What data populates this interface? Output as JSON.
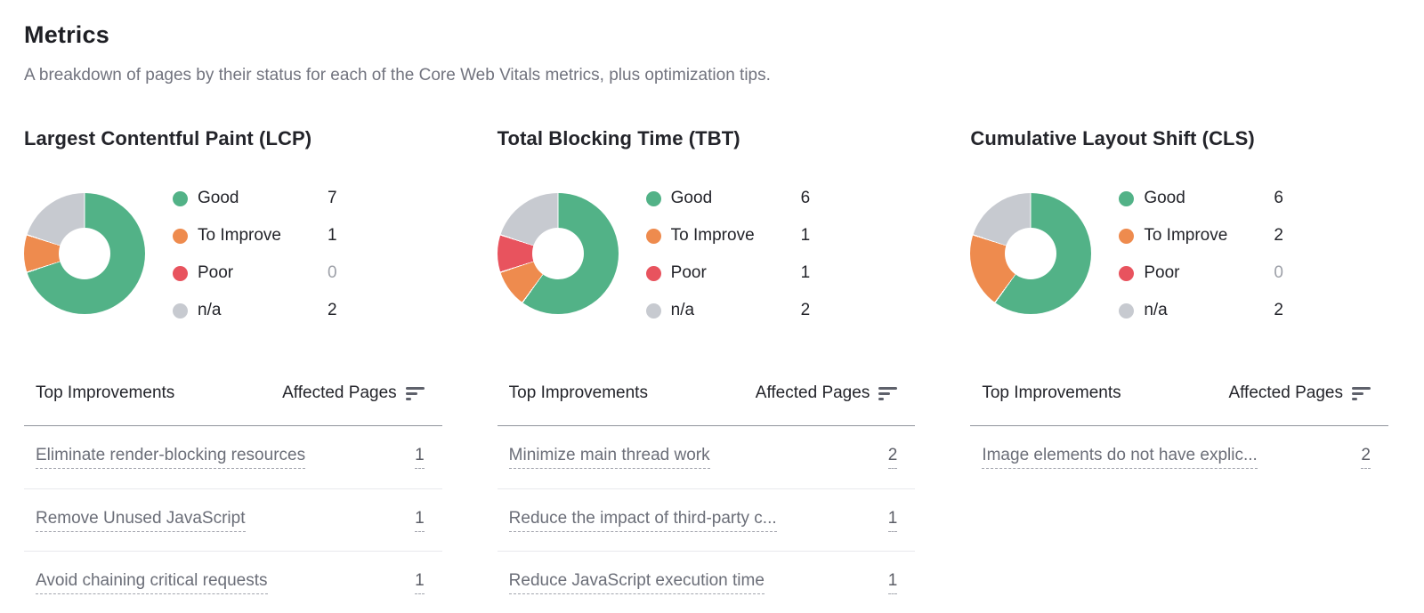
{
  "page": {
    "title": "Metrics",
    "subtitle": "A breakdown of pages by their status for each of the Core Web Vitals metrics, plus optimization tips."
  },
  "status_colors": {
    "good": "#52b287",
    "to_improve": "#ee8b4e",
    "poor": "#e8535e",
    "na": "#c7cad0"
  },
  "table_headers": {
    "improvements": "Top Improvements",
    "affected_pages": "Affected Pages",
    "sort_icon": "sort-descending"
  },
  "chart_data": [
    {
      "type": "pie",
      "donut": true,
      "title": "Largest Contentful Paint (LCP)",
      "categories": [
        "Good",
        "To Improve",
        "Poor",
        "n/a"
      ],
      "values": [
        7,
        1,
        0,
        2
      ],
      "colors": [
        "#52b287",
        "#ee8b4e",
        "#e8535e",
        "#c7cad0"
      ],
      "legend_position": "right",
      "start_angle_deg": 0,
      "direction": "clockwise"
    },
    {
      "type": "pie",
      "donut": true,
      "title": "Total Blocking Time (TBT)",
      "categories": [
        "Good",
        "To Improve",
        "Poor",
        "n/a"
      ],
      "values": [
        6,
        1,
        1,
        2
      ],
      "colors": [
        "#52b287",
        "#ee8b4e",
        "#e8535e",
        "#c7cad0"
      ],
      "legend_position": "right",
      "start_angle_deg": 0,
      "direction": "clockwise"
    },
    {
      "type": "pie",
      "donut": true,
      "title": "Cumulative Layout Shift (CLS)",
      "categories": [
        "Good",
        "To Improve",
        "Poor",
        "n/a"
      ],
      "values": [
        6,
        2,
        0,
        2
      ],
      "colors": [
        "#52b287",
        "#ee8b4e",
        "#e8535e",
        "#c7cad0"
      ],
      "legend_position": "right",
      "start_angle_deg": 0,
      "direction": "clockwise"
    }
  ],
  "improvements": [
    {
      "rows": [
        {
          "label": "Eliminate render-blocking resources",
          "count": 1
        },
        {
          "label": "Remove Unused JavaScript",
          "count": 1
        },
        {
          "label": "Avoid chaining critical requests",
          "count": 1
        }
      ]
    },
    {
      "rows": [
        {
          "label": "Minimize main thread work",
          "count": 2
        },
        {
          "label": "Reduce the impact of third-party c...",
          "count": 1
        },
        {
          "label": "Reduce JavaScript execution time",
          "count": 1
        }
      ]
    },
    {
      "rows": [
        {
          "label": "Image elements do not have explic...",
          "count": 2
        }
      ]
    }
  ]
}
